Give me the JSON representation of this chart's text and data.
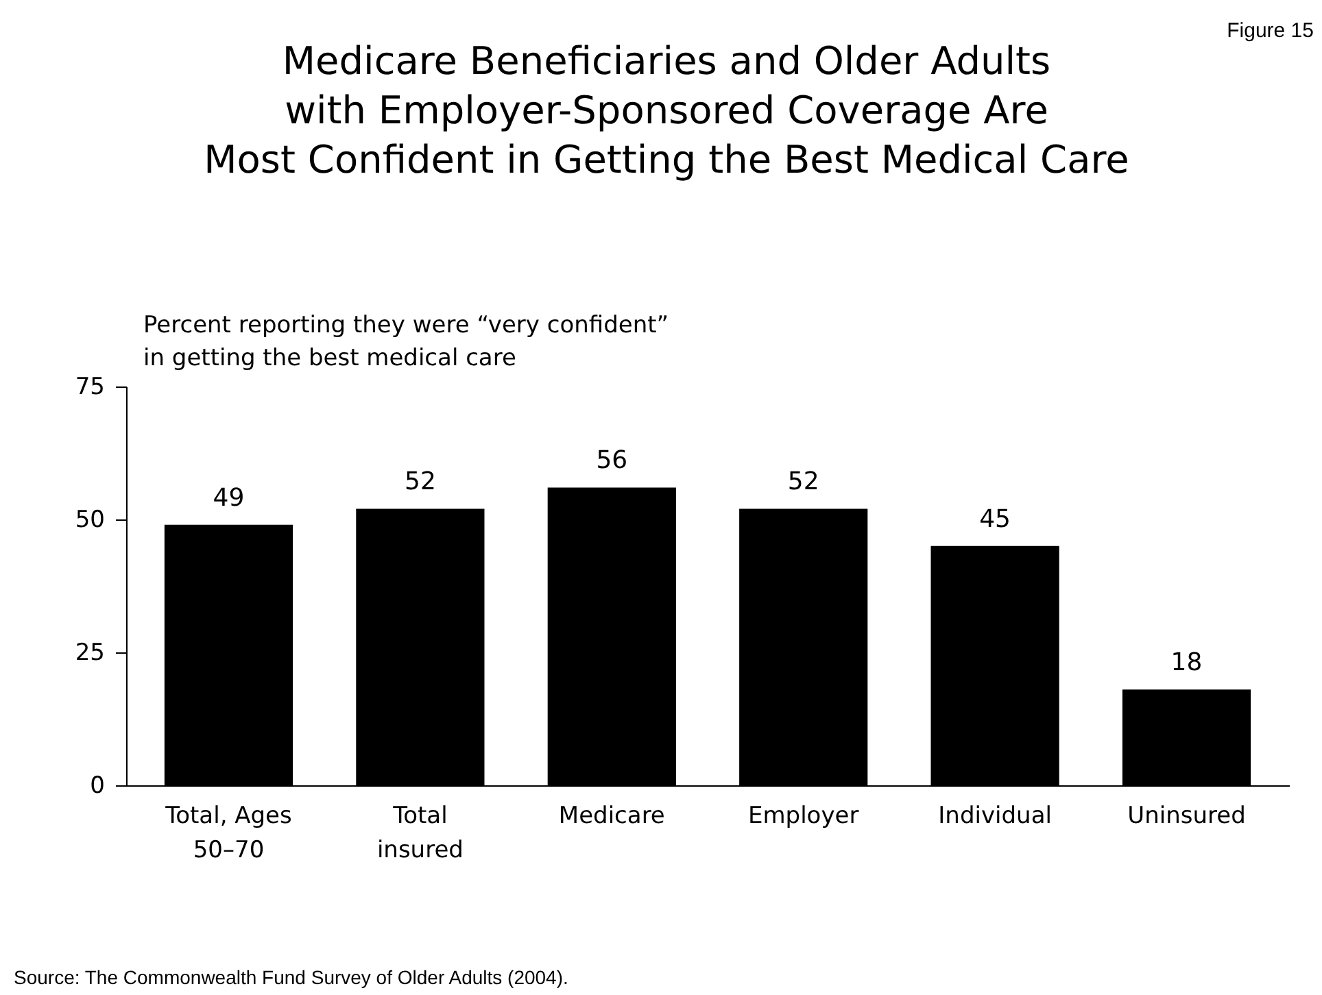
{
  "chart_data": {
    "type": "bar",
    "title": [
      "Medicare Beneficiaries and Older Adults",
      "with Employer-Sponsored Coverage Are",
      "Most Confident in Getting the Best Medical Care"
    ],
    "ylabel": [
      "Percent reporting they were “very confident”",
      "in getting the best medical care"
    ],
    "categories": [
      "Total, Ages 50–70",
      "Total insured",
      "Medicare",
      "Employer",
      "Individual",
      "Uninsured"
    ],
    "values": [
      49,
      52,
      56,
      52,
      45,
      18
    ],
    "color": "#000000",
    "ylim": [
      0,
      75
    ],
    "yticks": [
      0,
      25,
      50,
      75
    ],
    "grid": false,
    "data_labels": true,
    "annotations": [
      "Figure 15",
      "Source: The Commonwealth Fund Survey of Older Adults (2004)."
    ]
  }
}
